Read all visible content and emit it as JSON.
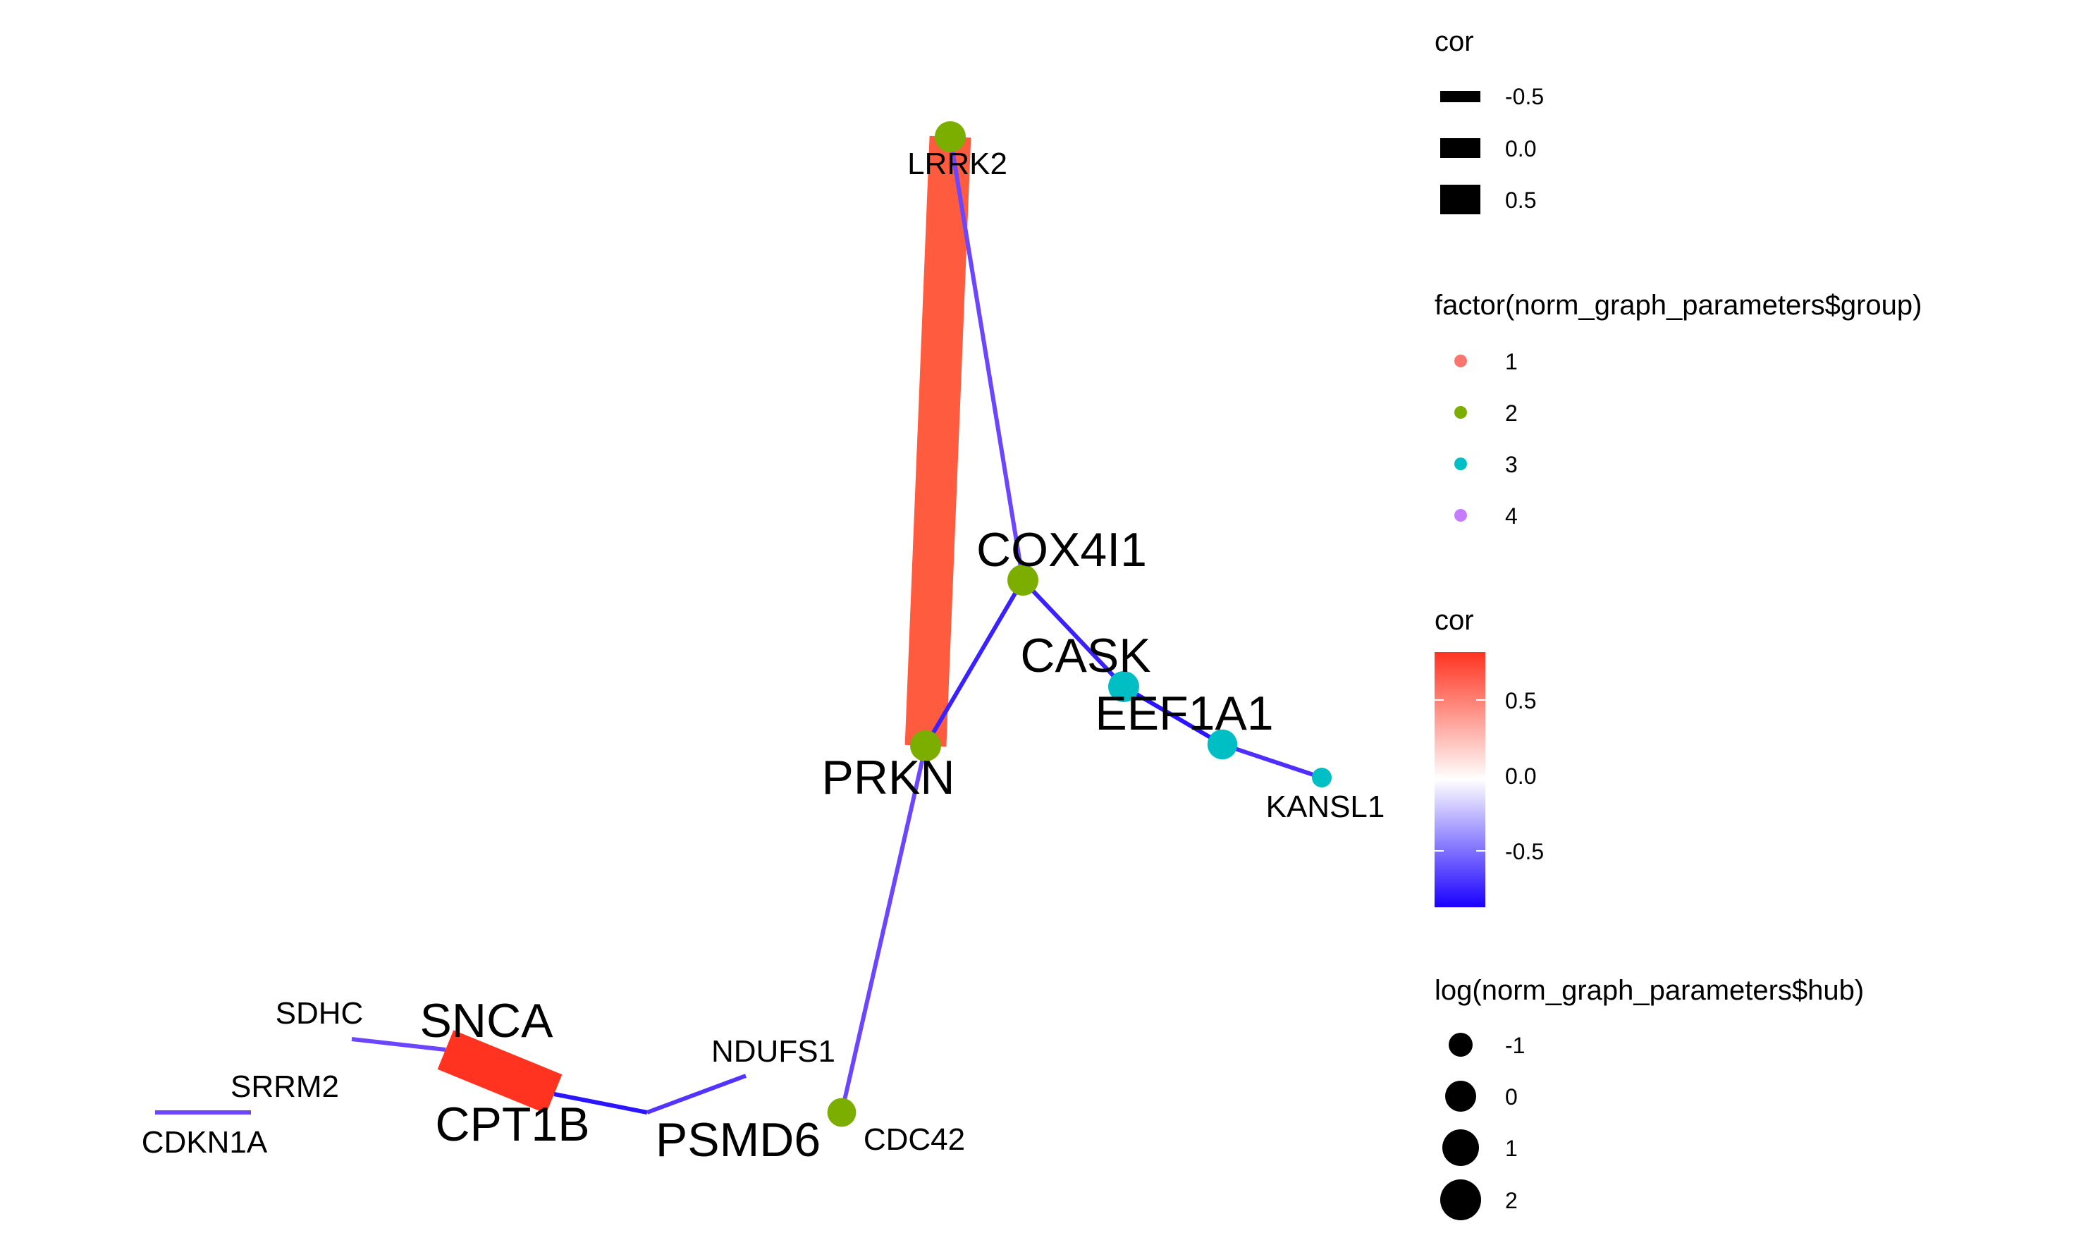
{
  "edges": [
    {
      "from": "LRRK2",
      "to": "PRKN",
      "cor": 0.82,
      "color": "#FF5C3F"
    },
    {
      "from": "LRRK2",
      "to": "COX4I1",
      "cor": -0.72,
      "color": "#6B45FF"
    },
    {
      "from": "COX4I1",
      "to": "PRKN",
      "cor": -0.85,
      "color": "#3A22FF"
    },
    {
      "from": "COX4I1",
      "to": "CASK",
      "cor": -0.85,
      "color": "#3A22FF"
    },
    {
      "from": "CASK",
      "to": "EEF1A1",
      "cor": -0.9,
      "color": "#2B14FF"
    },
    {
      "from": "EEF1A1",
      "to": "KANSL1",
      "cor": -0.78,
      "color": "#4F2EFF"
    },
    {
      "from": "PRKN",
      "to": "CDC42",
      "cor": -0.7,
      "color": "#6B45FF"
    },
    {
      "from": "SNCA",
      "to": "CPT1B",
      "cor": 0.85,
      "color": "#FF3320"
    },
    {
      "from": "SDHC",
      "to": "SNCA",
      "cor": -0.7,
      "color": "#6B45FF"
    },
    {
      "from": "CPT1B",
      "to": "PSMD6",
      "cor": -0.9,
      "color": "#2B14FF"
    },
    {
      "from": "PSMD6",
      "to": "NDUFS1",
      "cor": -0.75,
      "color": "#5533FF"
    },
    {
      "from": "SRRM2",
      "to": "CDKN1A",
      "cor": -0.72,
      "color": "#6B45FF"
    }
  ],
  "nodes": [
    {
      "id": "LRRK2",
      "label": "LRRK2",
      "group": 2,
      "hub": 0.5,
      "label_size": "small"
    },
    {
      "id": "COX4I1",
      "label": "COX4I1",
      "group": 2,
      "hub": 0.5,
      "label_size": "large"
    },
    {
      "id": "PRKN",
      "label": "PRKN",
      "group": 2,
      "hub": 0.5,
      "label_size": "large"
    },
    {
      "id": "CASK",
      "label": "CASK",
      "group": 3,
      "hub": 0.5,
      "label_size": "large"
    },
    {
      "id": "EEF1A1",
      "label": "EEF1A1",
      "group": 3,
      "hub": 0.3,
      "label_size": "large"
    },
    {
      "id": "KANSL1",
      "label": "KANSL1",
      "group": 3,
      "hub": -1.5,
      "label_size": "small"
    },
    {
      "id": "CDC42",
      "label": "CDC42",
      "group": 2,
      "hub": 0.1,
      "label_size": "small"
    },
    {
      "id": "SNCA",
      "label": "SNCA",
      "group": null,
      "hub": null,
      "label_size": "large"
    },
    {
      "id": "CPT1B",
      "label": "CPT1B",
      "group": null,
      "hub": null,
      "label_size": "large"
    },
    {
      "id": "PSMD6",
      "label": "PSMD6",
      "group": null,
      "hub": null,
      "label_size": "large"
    },
    {
      "id": "SDHC",
      "label": "SDHC",
      "group": null,
      "hub": null,
      "label_size": "small"
    },
    {
      "id": "NDUFS1",
      "label": "NDUFS1",
      "group": null,
      "hub": null,
      "label_size": "small"
    },
    {
      "id": "SRRM2",
      "label": "SRRM2",
      "group": null,
      "hub": null,
      "label_size": "small"
    },
    {
      "id": "CDKN1A",
      "label": "CDKN1A",
      "group": null,
      "hub": null,
      "label_size": "small"
    }
  ],
  "group_colors": {
    "1": "#F8766D",
    "2": "#7CAE00",
    "3": "#00BFC4",
    "4": "#C77CFF"
  },
  "legend": {
    "width": {
      "title": "cor",
      "items": [
        {
          "label": "-0.5",
          "value": -0.5
        },
        {
          "label": "0.0",
          "value": 0.0
        },
        {
          "label": "0.5",
          "value": 0.5
        }
      ]
    },
    "group": {
      "title": "factor(norm_graph_parameters$group)",
      "items": [
        {
          "label": "1",
          "color": "#F8766D"
        },
        {
          "label": "2",
          "color": "#7CAE00"
        },
        {
          "label": "3",
          "color": "#00BFC4"
        },
        {
          "label": "4",
          "color": "#C77CFF"
        }
      ]
    },
    "color": {
      "title": "cor",
      "ticks": [
        "0.5",
        "0.0",
        "-0.5"
      ],
      "gradient_high": "#FF3320",
      "gradient_mid": "#FFFFFF",
      "gradient_low": "#1A00FF"
    },
    "hub": {
      "title": "log(norm_graph_parameters$hub)",
      "items": [
        {
          "label": "-1",
          "value": -1
        },
        {
          "label": "0",
          "value": 0
        },
        {
          "label": "1",
          "value": 1
        },
        {
          "label": "2",
          "value": 2
        }
      ]
    }
  }
}
